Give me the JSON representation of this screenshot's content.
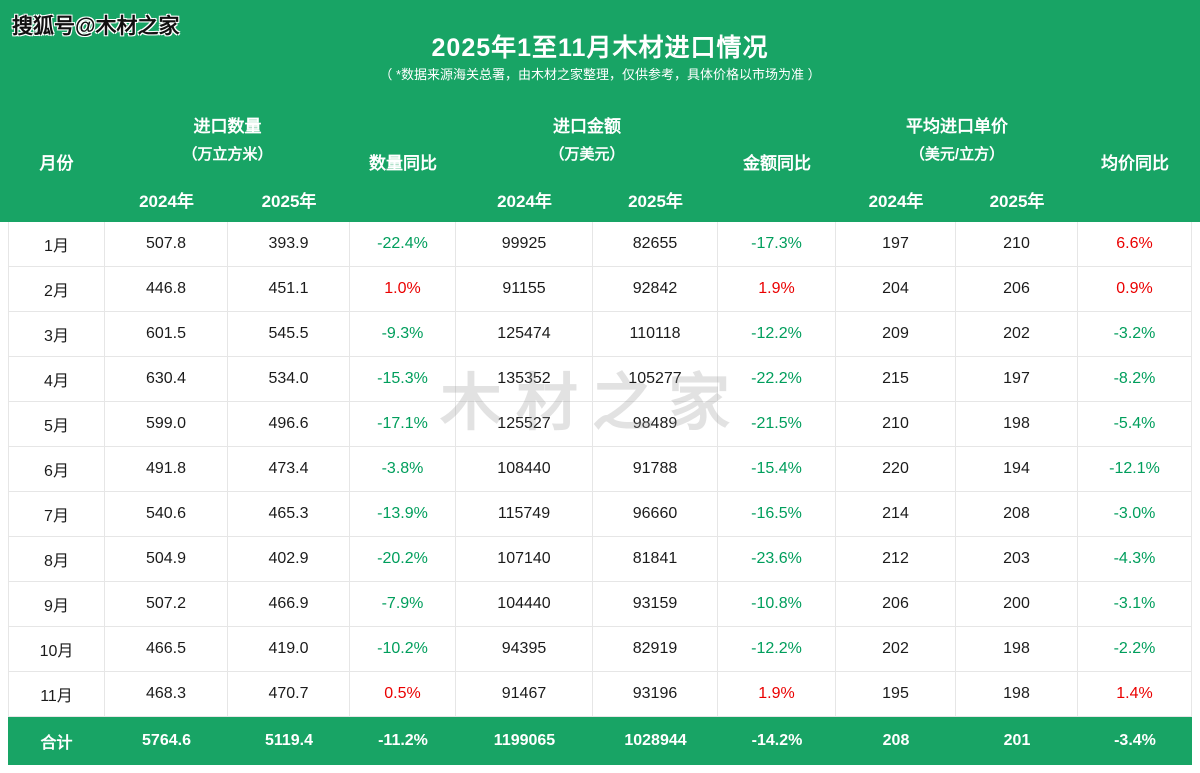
{
  "sohu_watermark": "搜狐号@木材之家",
  "center_watermark": "木材之家",
  "header": {
    "title": "2025年1至11月木材进口情况",
    "subtitle": "（ *数据来源海关总署，由木材之家整理，仅供参考，具体价格以市场为准 ）"
  },
  "colors": {
    "header_green": "#18a465",
    "positive_red": "#ea0000",
    "negative_green": "#009e5c"
  },
  "table": {
    "header": {
      "month": "月份",
      "groups": [
        {
          "title": "进口数量",
          "unit": "（万立方米）",
          "yoy": "数量同比"
        },
        {
          "title": "进口金额",
          "unit": "（万美元）",
          "yoy": "金额同比"
        },
        {
          "title": "平均进口单价",
          "unit": "（美元/立方）",
          "yoy": "均价同比"
        }
      ],
      "years": [
        "2024年",
        "2025年"
      ]
    }
  },
  "chart_data": {
    "type": "table",
    "title": "2025年1至11月木材进口情况",
    "columns": [
      "月份",
      "进口数量2024年(万立方米)",
      "进口数量2025年(万立方米)",
      "数量同比",
      "进口金额2024年(万美元)",
      "进口金额2025年(万美元)",
      "金额同比",
      "平均进口单价2024年(美元/立方)",
      "平均进口单价2025年(美元/立方)",
      "均价同比"
    ],
    "rows": [
      [
        "1月",
        "507.8",
        "393.9",
        "-22.4%",
        "99925",
        "82655",
        "-17.3%",
        "197",
        "210",
        "6.6%"
      ],
      [
        "2月",
        "446.8",
        "451.1",
        "1.0%",
        "91155",
        "92842",
        "1.9%",
        "204",
        "206",
        "0.9%"
      ],
      [
        "3月",
        "601.5",
        "545.5",
        "-9.3%",
        "125474",
        "110118",
        "-12.2%",
        "209",
        "202",
        "-3.2%"
      ],
      [
        "4月",
        "630.4",
        "534.0",
        "-15.3%",
        "135352",
        "105277",
        "-22.2%",
        "215",
        "197",
        "-8.2%"
      ],
      [
        "5月",
        "599.0",
        "496.6",
        "-17.1%",
        "125527",
        "98489",
        "-21.5%",
        "210",
        "198",
        "-5.4%"
      ],
      [
        "6月",
        "491.8",
        "473.4",
        "-3.8%",
        "108440",
        "91788",
        "-15.4%",
        "220",
        "194",
        "-12.1%"
      ],
      [
        "7月",
        "540.6",
        "465.3",
        "-13.9%",
        "115749",
        "96660",
        "-16.5%",
        "214",
        "208",
        "-3.0%"
      ],
      [
        "8月",
        "504.9",
        "402.9",
        "-20.2%",
        "107140",
        "81841",
        "-23.6%",
        "212",
        "203",
        "-4.3%"
      ],
      [
        "9月",
        "507.2",
        "466.9",
        "-7.9%",
        "104440",
        "93159",
        "-10.8%",
        "206",
        "200",
        "-3.1%"
      ],
      [
        "10月",
        "466.5",
        "419.0",
        "-10.2%",
        "94395",
        "82919",
        "-12.2%",
        "202",
        "198",
        "-2.2%"
      ],
      [
        "11月",
        "468.3",
        "470.7",
        "0.5%",
        "91467",
        "93196",
        "1.9%",
        "195",
        "198",
        "1.4%"
      ],
      [
        "合计",
        "5764.6",
        "5119.4",
        "-11.2%",
        "1199065",
        "1028944",
        "-14.2%",
        "208",
        "201",
        "-3.4%"
      ]
    ]
  }
}
